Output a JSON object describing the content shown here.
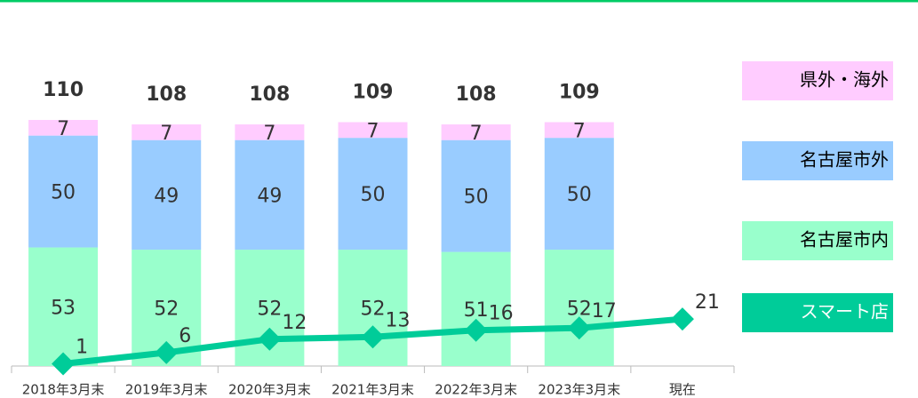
{
  "chart_data": {
    "type": "bar",
    "categories": [
      "2018年3月末",
      "2019年3月末",
      "2020年3月末",
      "2021年3月末",
      "2022年3月末",
      "2023年3月末",
      "現在"
    ],
    "ylim": [
      0,
      110
    ],
    "series": [
      {
        "name": "名古屋市内",
        "color": "#99ffcc",
        "values": [
          53,
          52,
          52,
          52,
          51,
          52,
          null
        ]
      },
      {
        "name": "名古屋市外",
        "color": "#99ccff",
        "values": [
          50,
          49,
          49,
          50,
          50,
          50,
          null
        ]
      },
      {
        "name": "県外・海外",
        "color": "#ffccff",
        "values": [
          7,
          7,
          7,
          7,
          7,
          7,
          null
        ]
      },
      {
        "name": "スマート店",
        "color": "#00cc99",
        "type": "line",
        "values": [
          1,
          6,
          12,
          13,
          16,
          17,
          21
        ]
      }
    ],
    "totals": [
      110,
      108,
      108,
      109,
      108,
      109,
      null
    ]
  }
}
